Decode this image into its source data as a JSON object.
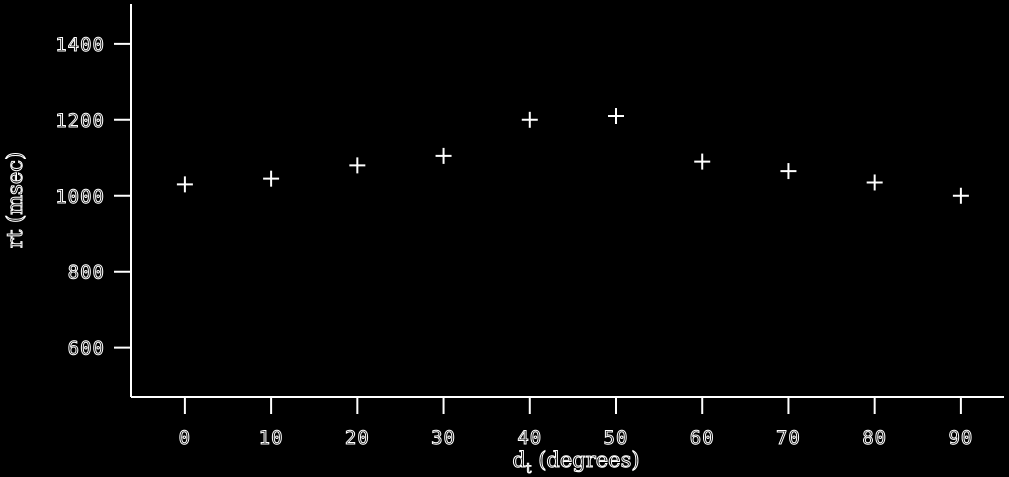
{
  "chart_data": {
    "type": "scatter",
    "title": "",
    "xlabel_main": "d",
    "xlabel_sub": "t",
    "xlabel_rest": " (degrees)",
    "ylabel": "rt (msec)",
    "x": [
      0,
      10,
      20,
      30,
      40,
      50,
      60,
      70,
      80,
      90
    ],
    "y": [
      1030,
      1045,
      1080,
      1105,
      1200,
      1210,
      1090,
      1065,
      1035,
      1000
    ],
    "xticks": [
      0,
      10,
      20,
      30,
      40,
      50,
      60,
      70,
      80,
      90
    ],
    "yticks": [
      600,
      800,
      1000,
      1200,
      1400
    ],
    "xlim": [
      -6.25,
      95
    ],
    "ylim": [
      470,
      1505
    ],
    "grid": false,
    "marker": "plus",
    "colors": {
      "background": "#000000",
      "foreground": "#ffffff"
    }
  }
}
